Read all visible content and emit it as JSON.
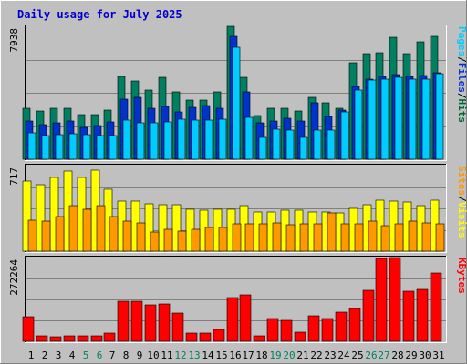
{
  "chart_data": {
    "type": "bar",
    "title": "Daily usage for July 2025",
    "categories": [
      "1",
      "2",
      "3",
      "4",
      "5",
      "6",
      "7",
      "8",
      "9",
      "10",
      "11",
      "12",
      "13",
      "14",
      "15",
      "16",
      "17",
      "18",
      "19",
      "20",
      "21",
      "22",
      "23",
      "24",
      "25",
      "26",
      "27",
      "28",
      "29",
      "30",
      "31"
    ],
    "weekend_days": [
      5,
      6,
      12,
      13,
      19,
      20,
      26,
      27
    ],
    "panels": [
      {
        "name": "hits-files-pages",
        "ymax_label": "7938",
        "ymax": 7938,
        "right_labels": [
          "Pages",
          "/",
          "Files",
          "/",
          "Hits"
        ],
        "right_label_colors": [
          "#00ccff",
          "#000000",
          "#0033cc",
          "#000000",
          "#006633"
        ],
        "series": [
          {
            "name": "Hits",
            "color": "#008060",
            "values": [
              3045,
              2890,
              3045,
              3045,
              2660,
              2660,
              2960,
              4950,
              4680,
              4110,
              4880,
              4030,
              3540,
              3540,
              4010,
              7938,
              4910,
              2630,
              3045,
              3045,
              2890,
              3710,
              3380,
              3020,
              5780,
              6290,
              6380,
              7300,
              6330,
              7000,
              7320
            ]
          },
          {
            "name": "Files",
            "color": "#0033cc",
            "values": [
              2290,
              2060,
              2200,
              2300,
              1930,
              2030,
              2210,
              3600,
              3710,
              3050,
              3160,
              2810,
              3090,
              3210,
              3030,
              7320,
              4050,
              2160,
              2300,
              2440,
              2290,
              3350,
              2530,
              2960,
              4330,
              4800,
              4940,
              5060,
              4970,
              5020,
              5150
            ]
          },
          {
            "name": "Pages",
            "color": "#00ccff",
            "values": [
              1560,
              1400,
              1450,
              1500,
              1450,
              1440,
              1440,
              2330,
              2170,
              2170,
              2240,
              2390,
              2320,
              2330,
              2400,
              6680,
              2490,
              1280,
              1770,
              1740,
              1330,
              1730,
              1730,
              2840,
              4110,
              4740,
              4780,
              4900,
              4810,
              4780,
              5120
            ]
          }
        ]
      },
      {
        "name": "visits-sites",
        "ymax_label": "717",
        "ymax": 717,
        "right_labels": [
          "Sites",
          "/",
          "Visits"
        ],
        "right_label_colors": [
          "#ff9900",
          "#000000",
          "#ffff00"
        ],
        "series": [
          {
            "name": "Visits",
            "color": "#ffff00",
            "values": [
              590,
              560,
              620,
              670,
              620,
              680,
              520,
              420,
              420,
              400,
              390,
              390,
              350,
              340,
              350,
              350,
              380,
              330,
              330,
              340,
              340,
              330,
              330,
              320,
              360,
              390,
              430,
              420,
              410,
              380,
              430
            ]
          },
          {
            "name": "Sites",
            "color": "#ff9900",
            "values": [
              260,
              250,
              290,
              380,
              350,
              380,
              290,
              250,
              240,
              160,
              180,
              170,
              180,
              200,
              200,
              230,
              230,
              230,
              240,
              220,
              230,
              230,
              320,
              230,
              230,
              250,
              210,
              230,
              250,
              240,
              230
            ]
          }
        ]
      },
      {
        "name": "kbytes",
        "ymax_label": "272264",
        "ymax": 272264,
        "right_labels": [
          "KBytes"
        ],
        "right_label_colors": [
          "#ff0000"
        ],
        "series": [
          {
            "name": "KBytes",
            "color": "#ff0000",
            "values": [
              80400,
              18300,
              15200,
              18500,
              16600,
              16900,
              26900,
              129000,
              129000,
              119000,
              120000,
              91300,
              28100,
              27300,
              39600,
              142000,
              150000,
              16400,
              73000,
              67100,
              30700,
              81800,
              75300,
              95300,
              106000,
              166000,
              268000,
              272264,
              163000,
              170000,
              222000
            ]
          }
        ]
      }
    ]
  }
}
